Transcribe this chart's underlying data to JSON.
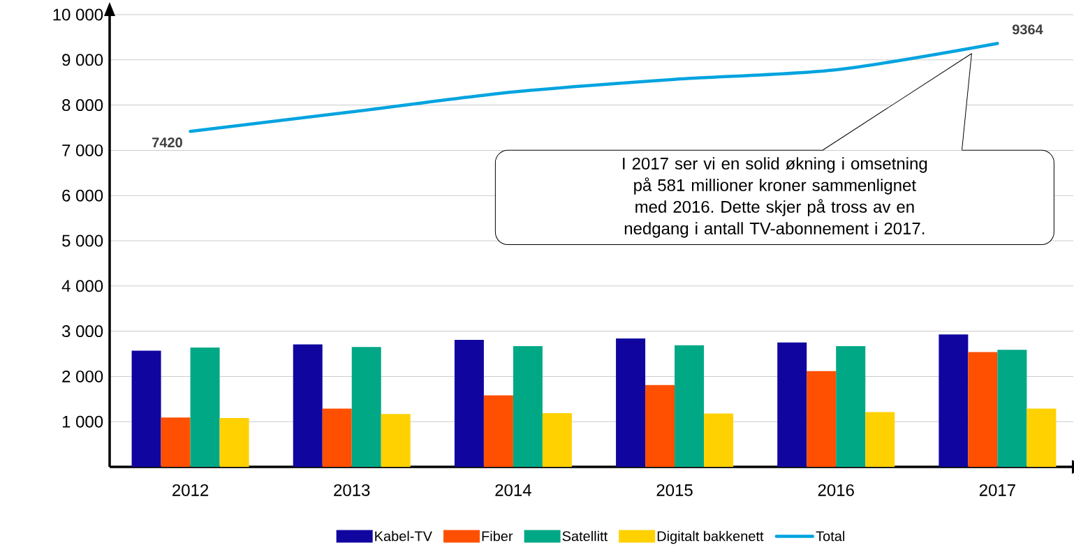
{
  "chart_data": {
    "type": "bar",
    "categories": [
      "2012",
      "2013",
      "2014",
      "2015",
      "2016",
      "2017"
    ],
    "series": [
      {
        "name": "Kabel-TV",
        "color": "#10069f",
        "values": [
          2570,
          2710,
          2810,
          2840,
          2750,
          2930
        ]
      },
      {
        "name": "Fiber",
        "color": "#fe5000",
        "values": [
          1090,
          1290,
          1580,
          1810,
          2120,
          2540
        ]
      },
      {
        "name": "Satellitt",
        "color": "#00a886",
        "values": [
          2640,
          2650,
          2670,
          2690,
          2670,
          2590
        ]
      },
      {
        "name": "Digitalt bakkenett",
        "color": "#ffd100",
        "values": [
          1080,
          1170,
          1190,
          1180,
          1210,
          1290
        ]
      },
      {
        "name": "Total",
        "type": "line",
        "color": "#00a3e0",
        "values": [
          7420,
          7850,
          8290,
          8570,
          8780,
          9364
        ],
        "value_labels": [
          "7420",
          null,
          null,
          null,
          null,
          "9364"
        ]
      }
    ],
    "ylim": [
      0,
      10000
    ],
    "yticks": [
      {
        "value": 1000,
        "label": "1 000"
      },
      {
        "value": 2000,
        "label": "2 000"
      },
      {
        "value": 3000,
        "label": "3 000"
      },
      {
        "value": 4000,
        "label": "4 000"
      },
      {
        "value": 5000,
        "label": "5 000"
      },
      {
        "value": 6000,
        "label": "6 000"
      },
      {
        "value": 7000,
        "label": "7 000"
      },
      {
        "value": 8000,
        "label": "8 000"
      },
      {
        "value": 9000,
        "label": "9 000"
      },
      {
        "value": 10000,
        "label": "10 000"
      }
    ],
    "grid": "y",
    "legend": "bottom",
    "marker": "none",
    "annotations": [
      "I 2017 ser vi en solid økning i omsetning på 581 millioner kroner sammenlignet med 2016. Dette skjer på tross av en nedgang i antall TV-abonnement i 2017."
    ]
  }
}
